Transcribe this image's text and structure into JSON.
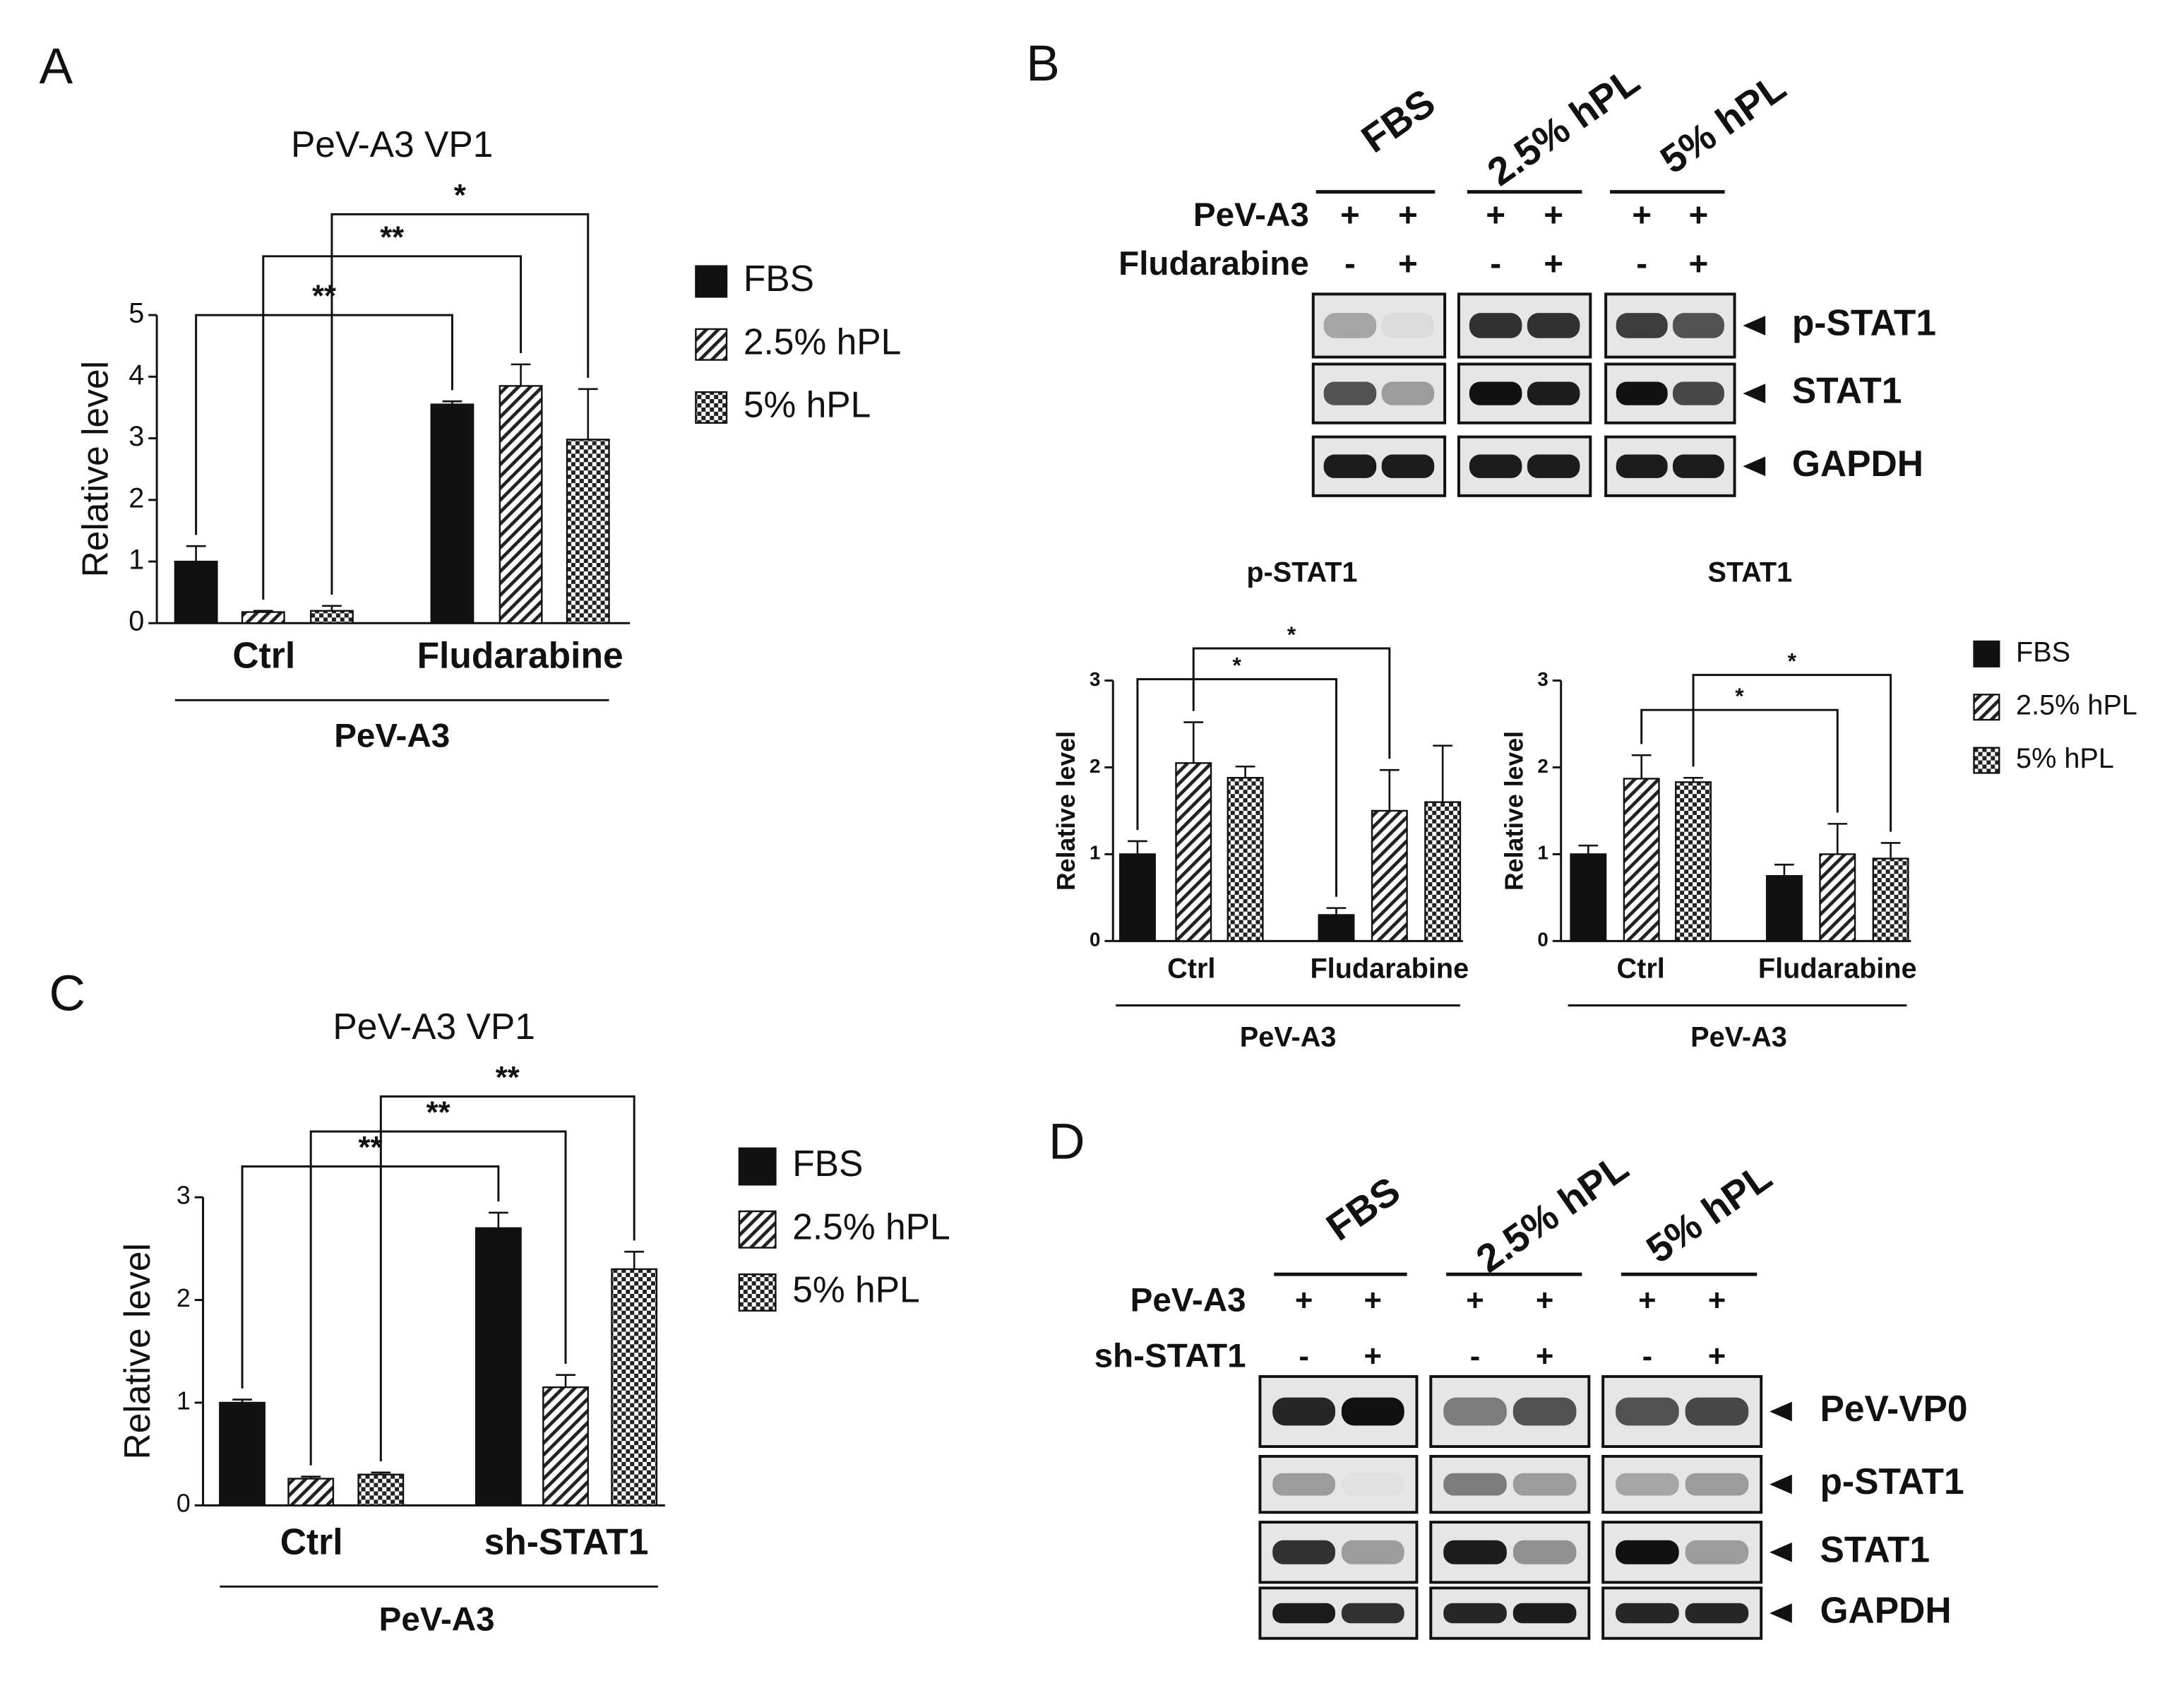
{
  "panel_labels": [
    "A",
    "B",
    "C",
    "D"
  ],
  "chart_data": [
    {
      "type": "bar",
      "title": "PeV-A3 VP1",
      "ylabel": "Relative level",
      "categories": [
        "Ctrl",
        "Fludarabine"
      ],
      "group_label": "PeV-A3",
      "series": [
        {
          "name": "FBS",
          "color": "#111111",
          "pattern": "solid",
          "values": [
            1.0,
            3.55
          ],
          "errors": [
            0.25,
            0.05
          ]
        },
        {
          "name": "2.5% hPL",
          "color": "#111111",
          "pattern": "hatch",
          "values": [
            0.18,
            3.85
          ],
          "errors": [
            0.02,
            0.35
          ]
        },
        {
          "name": "5% hPL",
          "color": "#111111",
          "pattern": "checker",
          "values": [
            0.2,
            2.98
          ],
          "errors": [
            0.08,
            0.82
          ]
        }
      ],
      "ylim": [
        0,
        5
      ],
      "yticks": [
        0,
        1,
        2,
        3,
        4,
        5
      ],
      "annotations": [
        "**",
        "**",
        "*"
      ]
    },
    {
      "type": "bar",
      "title": "p-STAT1",
      "ylabel": "Relative level",
      "categories": [
        "Ctrl",
        "Fludarabine"
      ],
      "group_label": "PeV-A3",
      "series": [
        {
          "color": "#111111",
          "pattern": "solid",
          "values": [
            1.0,
            0.3
          ],
          "errors": [
            0.15,
            0.08
          ]
        },
        {
          "color": "#111111",
          "pattern": "hatch",
          "values": [
            2.05,
            1.5
          ],
          "errors": [
            0.47,
            0.47
          ]
        },
        {
          "color": "#111111",
          "pattern": "checker",
          "values": [
            1.88,
            1.6
          ],
          "errors": [
            0.13,
            0.65
          ]
        }
      ],
      "ylim": [
        0,
        3
      ],
      "yticks": [
        0,
        1,
        2,
        3
      ],
      "annotations": [
        "*",
        "*"
      ]
    },
    {
      "type": "bar",
      "title": "STAT1",
      "ylabel": "Relative level",
      "categories": [
        "Ctrl",
        "Fludarabine"
      ],
      "group_label": "PeV-A3",
      "series": [
        {
          "name": "FBS",
          "color": "#111111",
          "pattern": "solid",
          "values": [
            1.0,
            0.75
          ],
          "errors": [
            0.1,
            0.13
          ]
        },
        {
          "name": "2.5% hPL",
          "color": "#111111",
          "pattern": "hatch",
          "values": [
            1.87,
            1.0
          ],
          "errors": [
            0.27,
            0.35
          ]
        },
        {
          "name": "5% hPL",
          "color": "#111111",
          "pattern": "checker",
          "values": [
            1.83,
            0.95
          ],
          "errors": [
            0.05,
            0.18
          ]
        }
      ],
      "ylim": [
        0,
        3
      ],
      "yticks": [
        0,
        1,
        2,
        3
      ],
      "annotations": [
        "*",
        "*"
      ]
    },
    {
      "type": "bar",
      "title": "PeV-A3 VP1",
      "ylabel": "Relative level",
      "categories": [
        "Ctrl",
        "sh-STAT1"
      ],
      "group_label": "PeV-A3",
      "series": [
        {
          "name": "FBS",
          "color": "#111111",
          "pattern": "solid",
          "values": [
            1.0,
            2.7
          ],
          "errors": [
            0.03,
            0.15
          ]
        },
        {
          "name": "2.5% hPL",
          "color": "#111111",
          "pattern": "hatch",
          "values": [
            0.26,
            1.15
          ],
          "errors": [
            0.02,
            0.12
          ]
        },
        {
          "name": "5% hPL",
          "color": "#111111",
          "pattern": "checker",
          "values": [
            0.3,
            2.3
          ],
          "errors": [
            0.02,
            0.17
          ]
        }
      ],
      "ylim": [
        0,
        3
      ],
      "yticks": [
        0,
        1,
        2,
        3
      ],
      "annotations": [
        "**",
        "**",
        "**"
      ]
    }
  ],
  "blots": [
    {
      "groups": [
        "FBS",
        "2.5% hPL",
        "5% hPL"
      ],
      "conditions": [
        {
          "label": "PeV-A3",
          "marks": [
            "+",
            "+",
            "+",
            "+",
            "+",
            "+"
          ]
        },
        {
          "label": "Fludarabine",
          "marks": [
            "-",
            "+",
            "-",
            "+",
            "-",
            "+"
          ]
        }
      ],
      "proteins": [
        "p-STAT1",
        "STAT1",
        "GAPDH"
      ]
    },
    {
      "groups": [
        "FBS",
        "2.5% hPL",
        "5% hPL"
      ],
      "conditions": [
        {
          "label": "PeV-A3",
          "marks": [
            "+",
            "+",
            "+",
            "+",
            "+",
            "+"
          ]
        },
        {
          "label": "sh-STAT1",
          "marks": [
            "-",
            "+",
            "-",
            "+",
            "-",
            "+"
          ]
        }
      ],
      "proteins": [
        "PeV-VP0",
        "p-STAT1",
        "STAT1",
        "GAPDH"
      ]
    }
  ]
}
